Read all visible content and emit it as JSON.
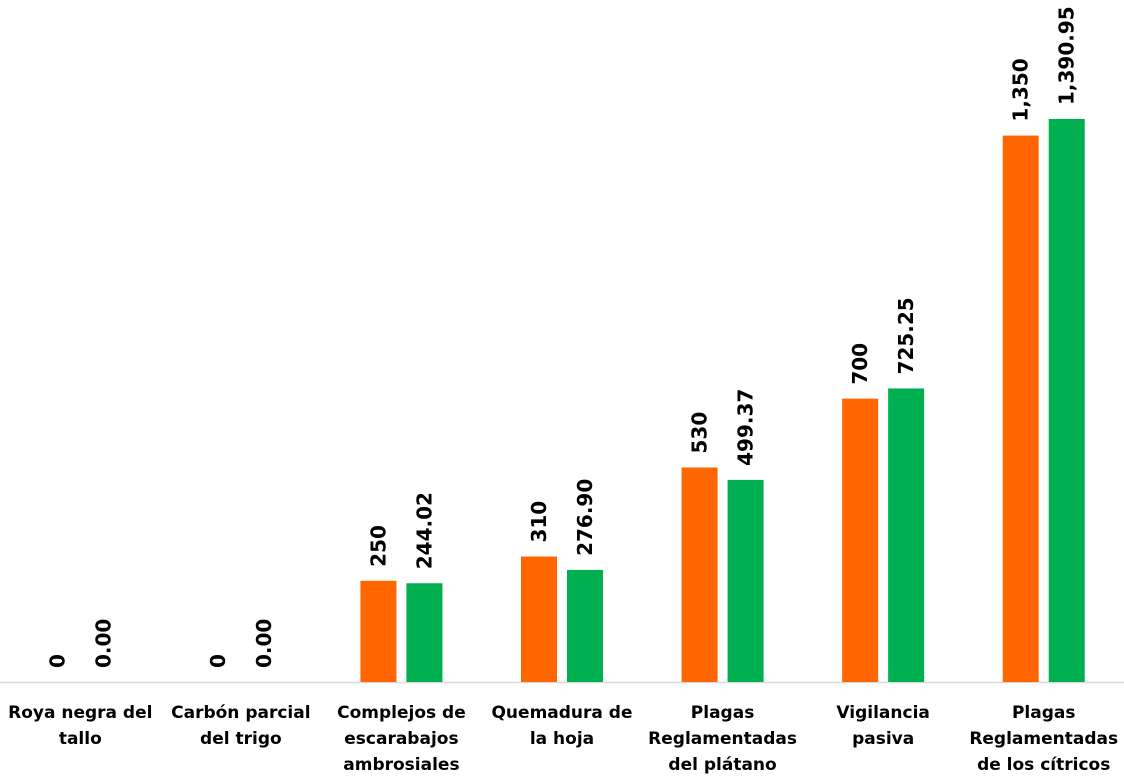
{
  "chart_data": {
    "type": "bar",
    "categories": [
      [
        "Roya negra del",
        "tallo"
      ],
      [
        "Carbón parcial",
        "del trigo"
      ],
      [
        "Complejos de",
        "escarabajos",
        "ambrosiales"
      ],
      [
        "Quemadura de",
        "la hoja"
      ],
      [
        "Plagas",
        "Reglamentadas",
        "del plátano"
      ],
      [
        "Vigilancia",
        "pasiva"
      ],
      [
        "Plagas",
        "Reglamentadas",
        "de los cítricos"
      ]
    ],
    "series": [
      {
        "color": "#FF6600",
        "values": [
          0,
          0,
          250,
          310,
          530,
          700,
          1350
        ],
        "labels": [
          "0",
          "0",
          "250",
          "310",
          "530",
          "700",
          "1,350"
        ]
      },
      {
        "color": "#00B050",
        "values": [
          0,
          0,
          244.02,
          276.9,
          499.37,
          725.25,
          1390.95
        ],
        "labels": [
          "0.00",
          "0.00",
          "244.02",
          "276.90",
          "499.37",
          "725.25",
          "1,390.95"
        ]
      }
    ],
    "title": "",
    "xlabel": "",
    "ylabel": "",
    "ylim": [
      0,
      1390.95
    ],
    "grid": false,
    "legend": "none"
  }
}
